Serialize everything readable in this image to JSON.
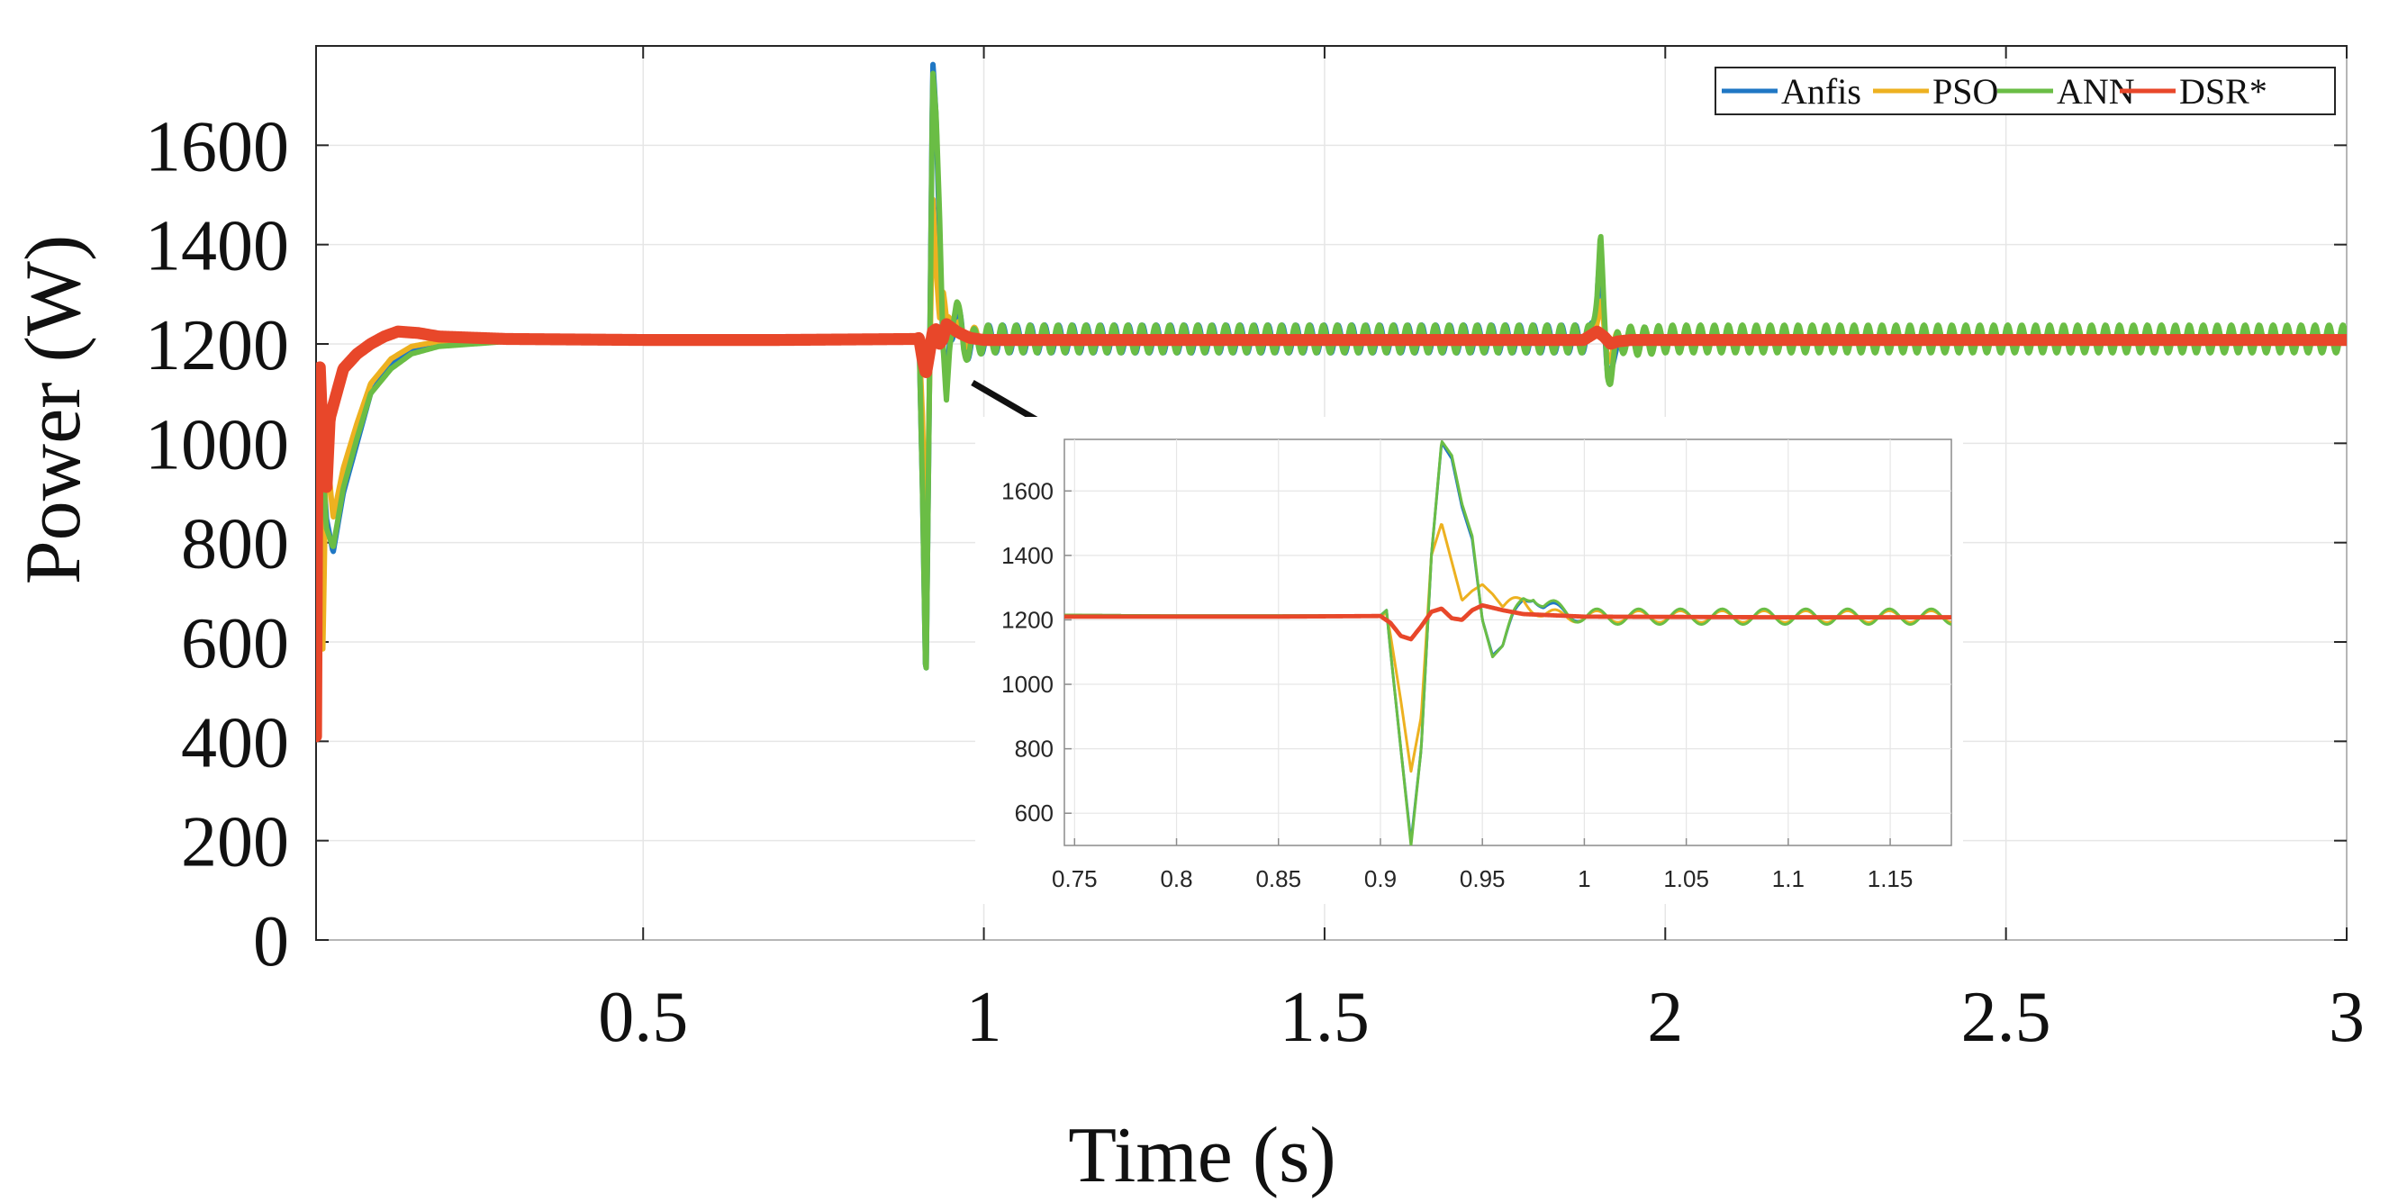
{
  "chart_data": [
    {
      "id": "main",
      "type": "line",
      "xlabel": "Time (s)",
      "ylabel": "Power (W)",
      "xlim": [
        0.02,
        3.0
      ],
      "ylim": [
        0,
        1800
      ],
      "xticks": [
        0.5,
        1,
        1.5,
        2,
        2.5,
        3
      ],
      "xtick_labels": [
        "0.5",
        "1",
        "1.5",
        "2",
        "2.5",
        "3"
      ],
      "yticks": [
        0,
        200,
        400,
        600,
        800,
        1000,
        1200,
        1400,
        1600
      ],
      "ytick_labels": [
        "0",
        "200",
        "400",
        "600",
        "800",
        "1000",
        "1200",
        "1400",
        "1600"
      ],
      "grid": true,
      "legend_position": "top-right",
      "series": [
        {
          "name": "Anfis",
          "color": "#1f77c4",
          "oscillation": {
            "from": 0.92,
            "to": 1.9,
            "amplitude": 28,
            "period": 0.0205
          },
          "x": [
            0.02,
            0.022,
            0.03,
            0.035,
            0.045,
            0.06,
            0.08,
            0.1,
            0.13,
            0.16,
            0.2,
            0.25,
            0.3,
            0.5,
            0.7,
            0.9,
            0.905,
            0.91,
            0.915,
            0.92,
            0.925,
            0.93,
            0.935,
            0.94,
            0.945,
            0.95,
            0.96,
            0.97,
            0.98,
            1.0,
            1.3,
            1.6,
            1.89,
            1.9,
            1.905,
            1.91,
            1.915,
            1.92,
            1.93,
            1.94,
            1.96,
            2.0,
            2.5,
            3.0
          ],
          "y": [
            430,
            1100,
            980,
            850,
            780,
            900,
            1000,
            1100,
            1160,
            1190,
            1200,
            1205,
            1210,
            1210,
            1210,
            1212,
            1213,
            900,
            500,
            1100,
            1740,
            1650,
            1450,
            1200,
            1090,
            1200,
            1285,
            1190,
            1200,
            1210,
            1210,
            1210,
            1210,
            1300,
            1400,
            1250,
            1140,
            1140,
            1200,
            1210,
            1205,
            1210,
            1210,
            1210
          ]
        },
        {
          "name": "PSO",
          "color": "#edb120",
          "oscillation": {
            "from": 0.94,
            "to": 3.0,
            "amplitude": 20,
            "period": 0.0205
          },
          "x": [
            0.02,
            0.022,
            0.03,
            0.035,
            0.045,
            0.06,
            0.08,
            0.1,
            0.13,
            0.16,
            0.2,
            0.25,
            0.3,
            0.5,
            0.7,
            0.9,
            0.905,
            0.91,
            0.915,
            0.92,
            0.925,
            0.93,
            0.935,
            0.94,
            0.945,
            0.95,
            0.96,
            0.97,
            0.98,
            1.0,
            1.5,
            1.89,
            1.9,
            1.905,
            1.91,
            1.915,
            1.92,
            1.93,
            1.95,
            2.0,
            2.5,
            3.0
          ],
          "y": [
            450,
            1050,
            580,
            1000,
            850,
            950,
            1040,
            1120,
            1170,
            1195,
            1205,
            1210,
            1210,
            1210,
            1210,
            1212,
            1212,
            1050,
            730,
            1100,
            1500,
            1350,
            1250,
            1310,
            1230,
            1250,
            1240,
            1210,
            1215,
            1210,
            1210,
            1210,
            1260,
            1280,
            1220,
            1175,
            1190,
            1205,
            1210,
            1210,
            1210,
            1210
          ]
        },
        {
          "name": "ANN",
          "color": "#6abd45",
          "oscillation": {
            "from": 0.96,
            "to": 3.0,
            "amplitude": 28,
            "period": 0.0205
          },
          "x": [
            0.02,
            0.022,
            0.03,
            0.035,
            0.045,
            0.06,
            0.08,
            0.1,
            0.13,
            0.16,
            0.2,
            0.25,
            0.3,
            0.5,
            0.7,
            0.9,
            0.905,
            0.91,
            0.915,
            0.92,
            0.925,
            0.93,
            0.935,
            0.94,
            0.945,
            0.95,
            0.96,
            0.97,
            0.98,
            1.0,
            1.5,
            1.89,
            1.9,
            1.905,
            1.91,
            1.915,
            1.92,
            1.93,
            1.94,
            1.96,
            2.0,
            2.5,
            3.0
          ],
          "y": [
            440,
            1150,
            960,
            830,
            790,
            910,
            1010,
            1100,
            1150,
            1180,
            1195,
            1200,
            1205,
            1210,
            1210,
            1212,
            1213,
            900,
            500,
            1100,
            1750,
            1660,
            1460,
            1200,
            1085,
            1195,
            1285,
            1190,
            1200,
            1210,
            1210,
            1210,
            1320,
            1410,
            1250,
            1150,
            1145,
            1200,
            1210,
            1205,
            1210,
            1210,
            1210
          ]
        },
        {
          "name": "DSR*",
          "color": "#e8472a",
          "oscillation": {
            "from": 0.0,
            "to": 0.0,
            "amplitude": 0,
            "period": 0.0205
          },
          "x": [
            0.02,
            0.022,
            0.025,
            0.03,
            0.035,
            0.04,
            0.05,
            0.06,
            0.08,
            0.1,
            0.12,
            0.14,
            0.17,
            0.2,
            0.3,
            0.5,
            0.7,
            0.9,
            0.905,
            0.91,
            0.915,
            0.92,
            0.925,
            0.93,
            0.935,
            0.94,
            0.945,
            0.95,
            0.96,
            0.97,
            0.98,
            1.0,
            1.5,
            1.88,
            1.9,
            1.91,
            1.92,
            1.93,
            1.95,
            2.0,
            2.5,
            3.0
          ],
          "y": [
            410,
            1000,
            1170,
            1000,
            900,
            1050,
            1100,
            1150,
            1180,
            1200,
            1215,
            1225,
            1222,
            1215,
            1210,
            1208,
            1208,
            1210,
            1212,
            1170,
            1140,
            1180,
            1225,
            1230,
            1200,
            1210,
            1240,
            1235,
            1225,
            1218,
            1212,
            1208,
            1208,
            1208,
            1225,
            1215,
            1200,
            1205,
            1208,
            1208,
            1208,
            1208
          ]
        }
      ]
    },
    {
      "id": "inset",
      "type": "line",
      "xlim": [
        0.745,
        1.18
      ],
      "ylim": [
        500,
        1760
      ],
      "xticks": [
        0.75,
        0.8,
        0.85,
        0.9,
        0.95,
        1,
        1.05,
        1.1,
        1.15
      ],
      "xtick_labels": [
        "0.75",
        "0.8",
        "0.85",
        "0.9",
        "0.95",
        "1",
        "1.05",
        "1.1",
        "1.15"
      ],
      "yticks": [
        600,
        800,
        1000,
        1200,
        1400,
        1600
      ],
      "ytick_labels": [
        "600",
        "800",
        "1000",
        "1200",
        "1400",
        "1600"
      ],
      "grid": true,
      "annotation": "arrow from the transient near t = 1 s in the main plot to the zoomed inset",
      "series": [
        {
          "name": "Anfis",
          "color": "#1f77c4",
          "oscillation": {
            "from": 0.96,
            "to": 3.0,
            "amplitude": 20,
            "period": 0.0205
          },
          "x": [
            0.745,
            0.8,
            0.85,
            0.9,
            0.903,
            0.905,
            0.91,
            0.915,
            0.92,
            0.925,
            0.93,
            0.935,
            0.94,
            0.945,
            0.95,
            0.955,
            0.96,
            0.965,
            0.97,
            0.975,
            0.98,
            1.0,
            1.1,
            1.18
          ],
          "y": [
            1215,
            1213,
            1213,
            1213,
            1230,
            1100,
            800,
            510,
            800,
            1400,
            1750,
            1700,
            1550,
            1450,
            1200,
            1090,
            1120,
            1200,
            1260,
            1280,
            1240,
            1210,
            1210,
            1210
          ]
        },
        {
          "name": "PSO",
          "color": "#edb120",
          "oscillation": {
            "from": 0.96,
            "to": 3.0,
            "amplitude": 18,
            "period": 0.0205
          },
          "x": [
            0.745,
            0.8,
            0.85,
            0.9,
            0.903,
            0.905,
            0.91,
            0.915,
            0.92,
            0.925,
            0.93,
            0.935,
            0.94,
            0.945,
            0.95,
            0.955,
            0.96,
            0.965,
            0.97,
            0.98,
            1.0,
            1.1,
            1.18
          ],
          "y": [
            1215,
            1213,
            1213,
            1213,
            1220,
            1150,
            950,
            730,
            900,
            1400,
            1500,
            1380,
            1260,
            1290,
            1310,
            1280,
            1240,
            1250,
            1260,
            1215,
            1210,
            1210,
            1210
          ]
        },
        {
          "name": "ANN",
          "color": "#6abd45",
          "oscillation": {
            "from": 0.96,
            "to": 3.0,
            "amplitude": 24,
            "period": 0.0205
          },
          "x": [
            0.745,
            0.8,
            0.85,
            0.9,
            0.903,
            0.905,
            0.91,
            0.915,
            0.92,
            0.925,
            0.93,
            0.935,
            0.94,
            0.945,
            0.95,
            0.955,
            0.96,
            0.965,
            0.97,
            0.975,
            0.98,
            1.0,
            1.1,
            1.18
          ],
          "y": [
            1215,
            1213,
            1213,
            1213,
            1230,
            1100,
            800,
            500,
            800,
            1400,
            1755,
            1710,
            1560,
            1460,
            1200,
            1085,
            1120,
            1200,
            1265,
            1285,
            1245,
            1210,
            1210,
            1210
          ]
        },
        {
          "name": "DSR*",
          "color": "#e8472a",
          "oscillation": {
            "from": 0.0,
            "to": 0.0,
            "amplitude": 0,
            "period": 0.0205
          },
          "x": [
            0.745,
            0.8,
            0.85,
            0.9,
            0.905,
            0.91,
            0.915,
            0.92,
            0.925,
            0.93,
            0.935,
            0.94,
            0.945,
            0.95,
            0.96,
            0.97,
            1.0,
            1.1,
            1.18
          ],
          "y": [
            1210,
            1210,
            1210,
            1212,
            1190,
            1150,
            1140,
            1180,
            1225,
            1235,
            1205,
            1200,
            1230,
            1245,
            1230,
            1218,
            1210,
            1208,
            1208
          ]
        }
      ]
    }
  ]
}
